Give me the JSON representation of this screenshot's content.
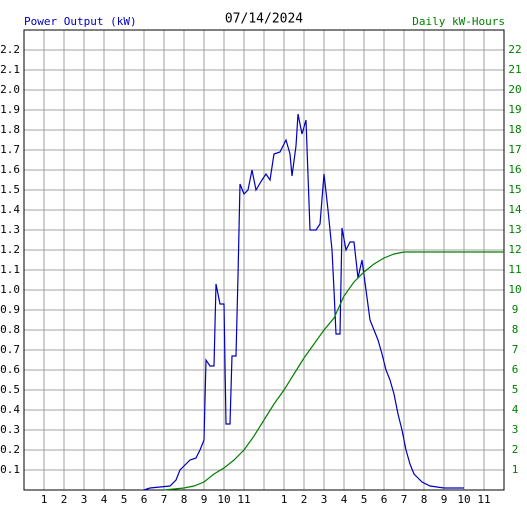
{
  "chart_data": {
    "type": "line",
    "title": "07/14/2024",
    "grid": true,
    "xlim": [
      0,
      24
    ],
    "xticks": [
      1,
      2,
      3,
      4,
      5,
      6,
      7,
      8,
      9,
      10,
      11,
      {
        "value": 12,
        "label": null
      },
      {
        "value": 13,
        "label": "1"
      },
      {
        "value": 14,
        "label": "2"
      },
      {
        "value": 15,
        "label": "3"
      },
      {
        "value": 16,
        "label": "4"
      },
      {
        "value": 17,
        "label": "5"
      },
      {
        "value": 18,
        "label": "6"
      },
      {
        "value": 19,
        "label": "7"
      },
      {
        "value": 20,
        "label": "8"
      },
      {
        "value": 21,
        "label": "9"
      },
      {
        "value": 22,
        "label": "10"
      },
      {
        "value": 23,
        "label": "11"
      }
    ],
    "ylim": [
      0,
      2.3
    ],
    "yticks": [
      0.1,
      0.2,
      0.3,
      0.4,
      0.5,
      0.6,
      0.7,
      0.8,
      0.9,
      {
        "value": 1,
        "label": "1.0"
      },
      1.1,
      1.2,
      1.3,
      1.4,
      1.5,
      1.6,
      1.7,
      1.8,
      1.9,
      {
        "value": 2,
        "label": "2.0"
      },
      2.1,
      2.2
    ],
    "y2lim": [
      0,
      23
    ],
    "y2ticks": [
      1,
      2,
      3,
      4,
      5,
      6,
      7,
      8,
      9,
      10,
      11,
      12,
      13,
      14,
      15,
      16,
      17,
      18,
      19,
      20,
      21,
      22
    ],
    "series": [
      {
        "name": "Power Output (kW)",
        "color": "#0000c0",
        "x": [
          6.0,
          6.3,
          7.3,
          7.6,
          7.8,
          8.1,
          8.3,
          8.6,
          8.8,
          9.0,
          9.1,
          9.3,
          9.5,
          9.6,
          9.8,
          10.0,
          10.1,
          10.3,
          10.4,
          10.6,
          10.7,
          10.8,
          11.0,
          11.2,
          11.4,
          11.6,
          11.9,
          12.1,
          12.3,
          12.5,
          12.8,
          13.1,
          13.3,
          13.4,
          13.6,
          13.7,
          13.9,
          14.1,
          14.3,
          14.6,
          14.8,
          15.0,
          15.2,
          15.4,
          15.5,
          15.6,
          15.8,
          15.9,
          16.1,
          16.3,
          16.5,
          16.7,
          16.9,
          17.1,
          17.3,
          17.5,
          17.7,
          17.9,
          18.1,
          18.3,
          18.5,
          18.7,
          18.9,
          19.1,
          19.3,
          19.5,
          19.7,
          19.9,
          20.3,
          21.0,
          22.0
        ],
        "values": [
          0,
          0.01,
          0.02,
          0.05,
          0.1,
          0.13,
          0.15,
          0.16,
          0.2,
          0.25,
          0.65,
          0.62,
          0.62,
          1.03,
          0.93,
          0.93,
          0.33,
          0.33,
          0.67,
          0.67,
          1.07,
          1.53,
          1.48,
          1.5,
          1.6,
          1.5,
          1.55,
          1.58,
          1.55,
          1.68,
          1.69,
          1.75,
          1.68,
          1.57,
          1.72,
          1.88,
          1.78,
          1.85,
          1.3,
          1.3,
          1.33,
          1.58,
          1.4,
          1.2,
          1.0,
          0.78,
          0.78,
          1.31,
          1.2,
          1.24,
          1.24,
          1.06,
          1.15,
          1.0,
          0.85,
          0.8,
          0.75,
          0.68,
          0.6,
          0.55,
          0.48,
          0.38,
          0.3,
          0.2,
          0.13,
          0.08,
          0.06,
          0.04,
          0.02,
          0.01,
          0.01
        ]
      },
      {
        "name": "Daily kW-Hours",
        "color": "#008000",
        "axis": "y2",
        "x": [
          7,
          8,
          8.5,
          9,
          9.5,
          10,
          10.5,
          11,
          11.5,
          12,
          12.5,
          13,
          13.5,
          14,
          14.5,
          15,
          15.5,
          16,
          16.5,
          17,
          17.5,
          18,
          18.5,
          19,
          20,
          24
        ],
        "values": [
          0,
          0.1,
          0.2,
          0.4,
          0.8,
          1.1,
          1.5,
          2.0,
          2.7,
          3.5,
          4.3,
          5.0,
          5.8,
          6.6,
          7.3,
          8.0,
          8.6,
          9.7,
          10.4,
          10.9,
          11.3,
          11.6,
          11.8,
          11.9,
          11.9,
          11.9
        ]
      }
    ]
  }
}
